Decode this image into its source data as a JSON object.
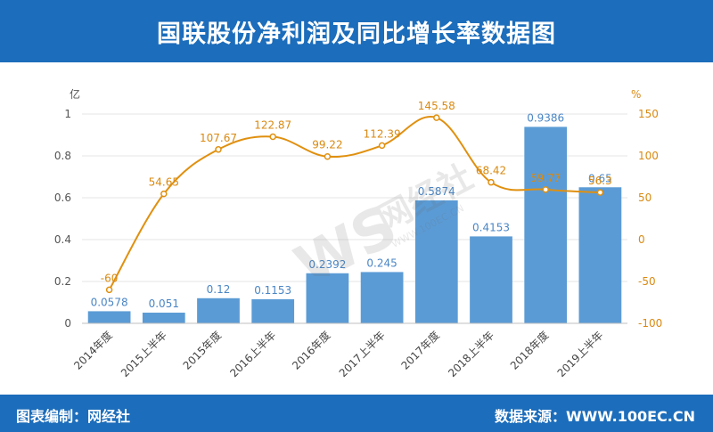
{
  "header": {
    "title": "国联股份净利润及同比增长率数据图"
  },
  "footer": {
    "left_text": "图表编制：网经社",
    "right_text": "数据来源：WWW.100EC.CN"
  },
  "watermark": {
    "text": "网经社",
    "sub": "WWW.100EC.CN"
  },
  "colors": {
    "header_bg": "#1c6dbb",
    "bar": "#5b9bd5",
    "line": "#e0900f",
    "bar_label": "#4a86c5",
    "line_label": "#d98a12"
  },
  "chart_data": {
    "type": "bar",
    "categories": [
      "2014年度",
      "2015上半年",
      "2015年度",
      "2016上半年",
      "2016年度",
      "2017上半年",
      "2017年度",
      "2018上半年",
      "2018年度",
      "2019上半年"
    ],
    "series": [
      {
        "name": "",
        "type": "bar",
        "axis": "left",
        "values": [
          0.0578,
          0.051,
          0.12,
          0.1153,
          0.2392,
          0.245,
          0.5874,
          0.4153,
          0.9386,
          0.65
        ]
      },
      {
        "name": "",
        "type": "line",
        "axis": "right",
        "values": [
          -60,
          54.65,
          107.67,
          122.87,
          99.22,
          112.39,
          145.58,
          68.42,
          59.77,
          56.3
        ]
      }
    ],
    "bar_labels": [
      "0.0578",
      "0.051",
      "0.12",
      "0.1153",
      "0.2392",
      "0.245",
      "0.5874",
      "0.4153",
      "0.9386",
      "0.65"
    ],
    "line_labels": [
      "-60",
      "54.65",
      "107.67",
      "122.87",
      "99.22",
      "112.39",
      "145.58",
      "68.42",
      "59.77",
      "56.3"
    ],
    "left_axis": {
      "unit": "亿",
      "ylim": [
        0,
        1
      ],
      "ticks": [
        "0",
        "0.2",
        "0.4",
        "0.6",
        "0.8",
        "1"
      ]
    },
    "right_axis": {
      "unit": "%",
      "ylim": [
        -100,
        150
      ],
      "ticks": [
        "-100",
        "-50",
        "0",
        "50",
        "100",
        "150"
      ]
    },
    "grid": true
  }
}
